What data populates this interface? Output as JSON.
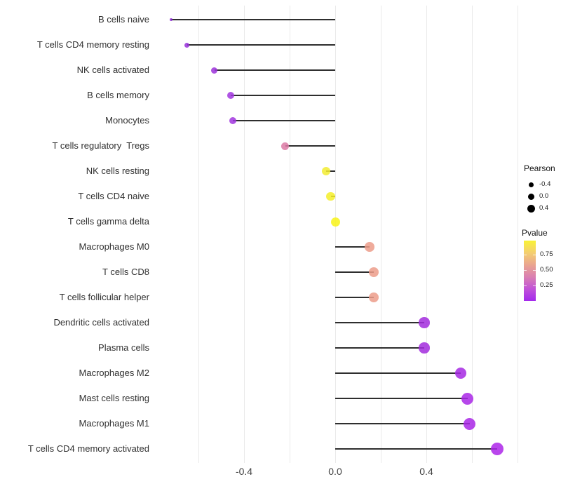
{
  "chart_data": {
    "type": "scatter",
    "subtype": "lollipop",
    "orientation": "horizontal",
    "title": "",
    "xlabel": "",
    "ylabel": "",
    "x_range": [
      -0.79,
      0.85
    ],
    "baseline_value": 0,
    "x_gridlines": [
      -0.6,
      -0.4,
      -0.2,
      0,
      0.2,
      0.4,
      0.6,
      0.8
    ],
    "x_ticks": [
      {
        "label": "-0.4",
        "value": -0.4
      },
      {
        "label": "0.0",
        "value": 0
      },
      {
        "label": "0.4",
        "value": 0.4
      }
    ],
    "points": [
      {
        "label": "B cells naive",
        "pearson": -0.72,
        "pvalue": 0.1,
        "color": "#8C2BD1",
        "size": 4.5
      },
      {
        "label": "T cells CD4 memory resting",
        "pearson": -0.65,
        "pvalue": 0.11,
        "color": "#9831DA",
        "size": 7
      },
      {
        "label": "NK cells activated",
        "pearson": -0.53,
        "pvalue": 0.12,
        "color": "#9C33DB",
        "size": 9
      },
      {
        "label": "B cells memory",
        "pearson": -0.46,
        "pvalue": 0.13,
        "color": "#A136DF",
        "size": 10
      },
      {
        "label": "Monocytes",
        "pearson": -0.45,
        "pvalue": 0.13,
        "color": "#A136DF",
        "size": 10
      },
      {
        "label": "T cells regulatory  Tregs",
        "pearson": -0.22,
        "pvalue": 0.38,
        "color": "#DC7AA5",
        "size": 11
      },
      {
        "label": "NK cells resting",
        "pearson": -0.04,
        "pvalue": 0.85,
        "color": "#F2EC31",
        "size": 12.5
      },
      {
        "label": "T cells CD4 naive",
        "pearson": -0.02,
        "pvalue": 0.88,
        "color": "#F4EF29",
        "size": 12.5
      },
      {
        "label": "T cells gamma delta",
        "pearson": 0.0,
        "pvalue": 0.95,
        "color": "#F8F318",
        "size": 13
      },
      {
        "label": "Macrophages M0",
        "pearson": 0.15,
        "pvalue": 0.52,
        "color": "#EC9C89",
        "size": 13.5
      },
      {
        "label": "T cells CD8",
        "pearson": 0.17,
        "pvalue": 0.52,
        "color": "#EC9C89",
        "size": 14
      },
      {
        "label": "T cells follicular helper",
        "pearson": 0.17,
        "pvalue": 0.52,
        "color": "#EC9C89",
        "size": 14
      },
      {
        "label": "Dendritic cells activated",
        "pearson": 0.39,
        "pvalue": 0.12,
        "color": "#A22CDD",
        "size": 15.5
      },
      {
        "label": "Plasma cells",
        "pearson": 0.39,
        "pvalue": 0.12,
        "color": "#A22CDD",
        "size": 15.5
      },
      {
        "label": "Macrophages M2",
        "pearson": 0.55,
        "pvalue": 0.09,
        "color": "#A629E3",
        "size": 16.5
      },
      {
        "label": "Mast cells resting",
        "pearson": 0.58,
        "pvalue": 0.08,
        "color": "#A927E6",
        "size": 17
      },
      {
        "label": "Macrophages M1",
        "pearson": 0.59,
        "pvalue": 0.08,
        "color": "#A927E6",
        "size": 17
      },
      {
        "label": "T cells CD4 memory activated",
        "pearson": 0.71,
        "pvalue": 0.05,
        "color": "#AD26E9",
        "size": 18
      }
    ]
  },
  "legend": {
    "pearson": {
      "title": "Pearson",
      "dot_color": "#000000",
      "items": [
        {
          "label": "-0.4",
          "dot_size": 7
        },
        {
          "label": "0.0",
          "dot_size": 9
        },
        {
          "label": "0.4",
          "dot_size": 11
        }
      ]
    },
    "pvalue": {
      "title": "Pvalue",
      "tick_labels": [
        "0.75",
        "0.50",
        "0.25"
      ],
      "gradient_top_to_bottom": [
        "#F9F235",
        "#F4CF6F",
        "#EAA58F",
        "#DA80B1",
        "#C153D8",
        "#A42AEC"
      ]
    }
  },
  "colors": {
    "background": "#FFFFFF",
    "stem": "#2E2E2E",
    "gridline": "#E9E9E9"
  }
}
